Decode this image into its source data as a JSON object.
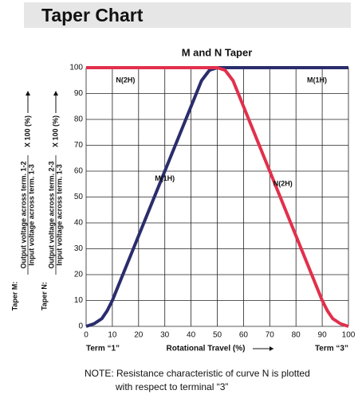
{
  "header": {
    "title": "Taper Chart"
  },
  "chart_data": {
    "type": "line",
    "title": "M and N Taper",
    "x_label": "Rotational Travel (%)",
    "term_left": "Term “1”",
    "term_right": "Term “3”",
    "y_labels": [
      {
        "prefix": "Taper M:",
        "numerator": "Output voltage across term. 1-2",
        "denominator": "Input voltage across term. 1-3",
        "factor": "X 100 (%)"
      },
      {
        "prefix": "Taper N:",
        "numerator": "Output voltage across term. 2-3",
        "denominator": "Input voltage across term. 1-3",
        "factor": "X 100 (%)"
      }
    ],
    "xlim": [
      0,
      100
    ],
    "ylim": [
      0,
      100
    ],
    "xticks": [
      0,
      10,
      20,
      30,
      40,
      50,
      60,
      70,
      80,
      90,
      100
    ],
    "yticks": [
      0,
      10,
      20,
      30,
      40,
      50,
      60,
      70,
      80,
      90,
      100
    ],
    "grid": true,
    "series": [
      {
        "name": "M(1H)",
        "color": "#2a2d6c",
        "x": [
          0,
          3,
          6,
          8,
          10,
          20,
          30,
          40,
          44,
          47,
          50,
          100
        ],
        "values": [
          0,
          1,
          3,
          6,
          10,
          35,
          60,
          85,
          95,
          99,
          100,
          100
        ]
      },
      {
        "name": "N(2H)",
        "color": "#e2304c",
        "x": [
          0,
          50,
          53,
          56,
          60,
          70,
          80,
          90,
          92,
          94,
          97,
          100
        ],
        "values": [
          100,
          100,
          99,
          95,
          85,
          60,
          35,
          10,
          6,
          3,
          1,
          0
        ]
      }
    ],
    "annotations": [
      "N(2H)",
      "M(1H)",
      "M(1H)",
      "N(2H)"
    ]
  },
  "note": [
    "NOTE: Resistance characteristic of curve N is plotted",
    "with respect to terminal “3”"
  ]
}
